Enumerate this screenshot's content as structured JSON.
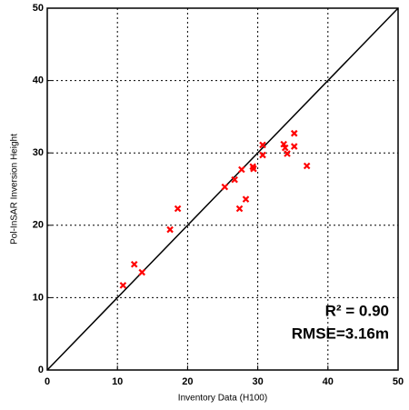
{
  "chart_data": {
    "type": "scatter",
    "xlabel": "Inventory Data (H100)",
    "ylabel": "Pol-InSAR Inversion Height",
    "x": [
      10.8,
      12.4,
      13.5,
      17.5,
      18.6,
      25.3,
      26.7,
      27.4,
      27.7,
      28.3,
      29.3,
      29.4,
      30.7,
      30.7,
      33.7,
      33.9,
      34.2,
      35.2,
      35.2,
      37.0
    ],
    "values": [
      11.7,
      14.6,
      13.5,
      19.4,
      22.3,
      25.3,
      26.3,
      22.3,
      27.7,
      23.6,
      28.1,
      27.8,
      31.1,
      29.7,
      31.2,
      30.7,
      29.9,
      32.7,
      30.9,
      28.2
    ],
    "color": "#ff0000",
    "reference_line": {
      "x": [
        0,
        50
      ],
      "values": [
        0,
        50
      ],
      "color": "#000000"
    },
    "annotations": [
      "R² = 0.90",
      "RMSE=3.16m"
    ],
    "xlim": [
      0,
      50
    ],
    "ylim": [
      0,
      50
    ],
    "xticks": [
      0,
      10,
      20,
      30,
      40,
      50
    ],
    "yticks": [
      0,
      10,
      20,
      30,
      40,
      50
    ],
    "grid": true
  }
}
